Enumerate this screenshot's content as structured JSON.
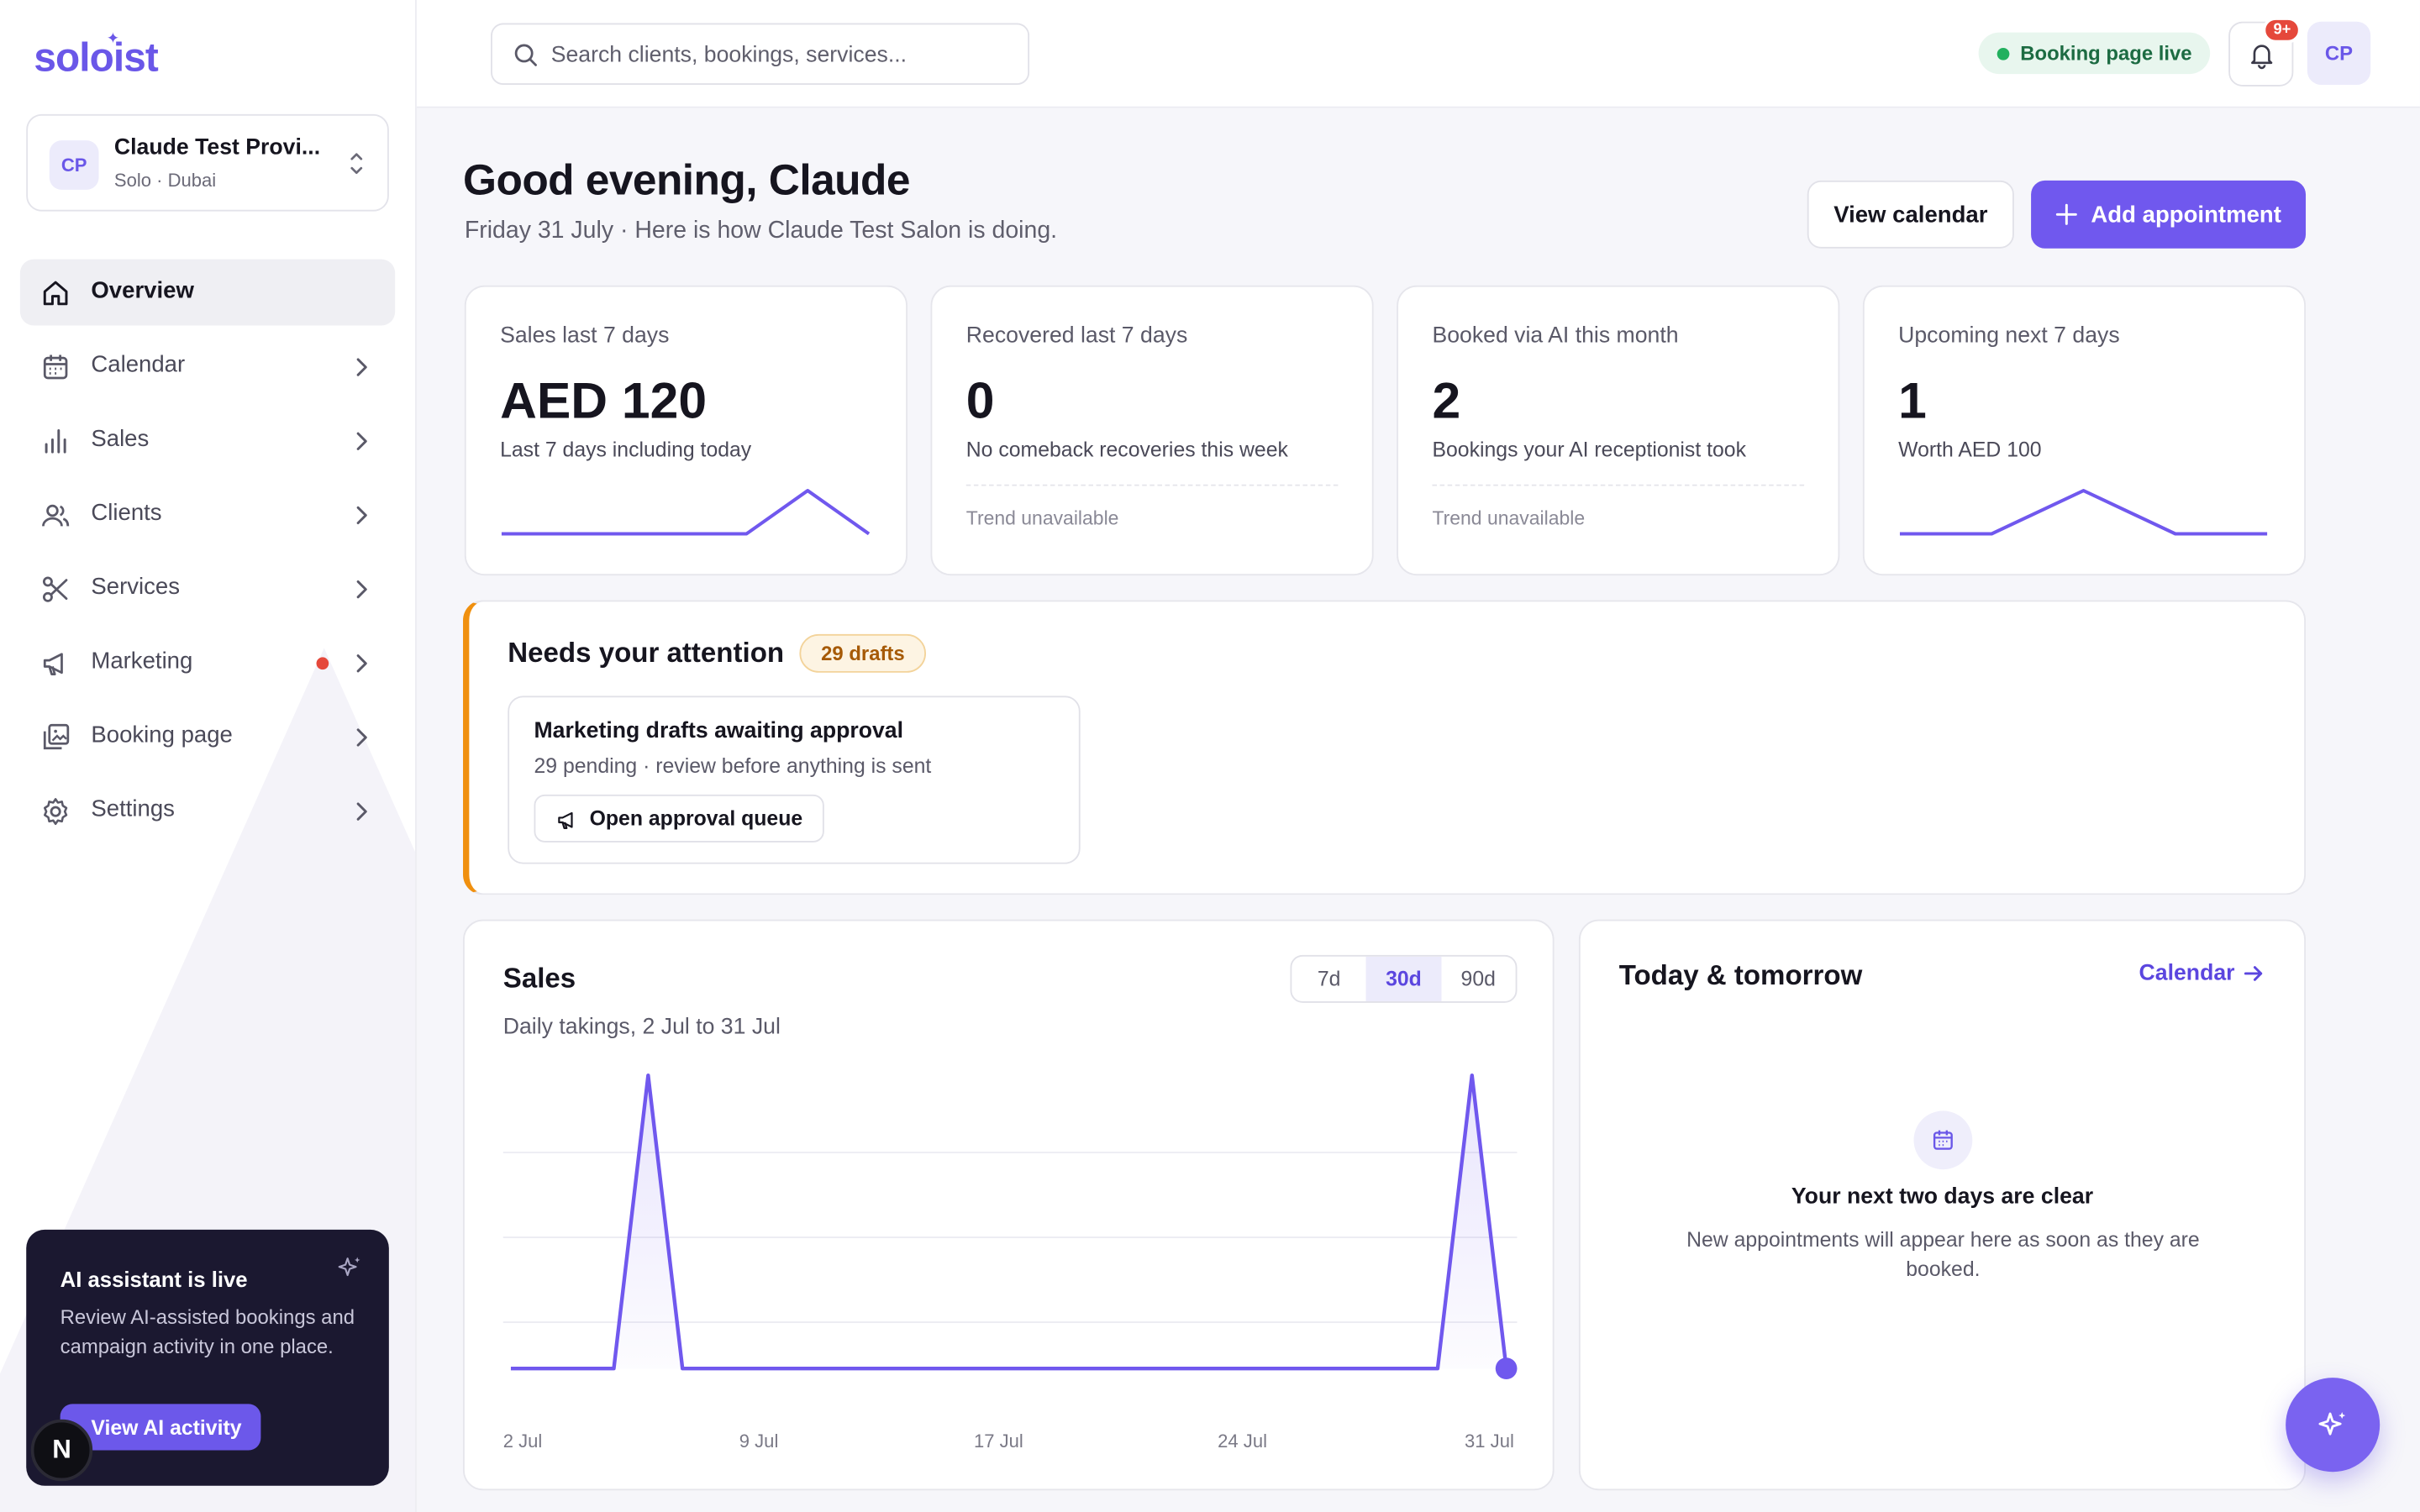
{
  "brand": {
    "name": "soloist"
  },
  "workspace": {
    "initials": "CP",
    "name": "Claude Test Provi...",
    "sub": "Solo · Dubai"
  },
  "nav": {
    "items": [
      {
        "label": "Overview",
        "icon": "home-icon",
        "active": true
      },
      {
        "label": "Calendar",
        "icon": "calendar-icon"
      },
      {
        "label": "Sales",
        "icon": "bar-chart-icon"
      },
      {
        "label": "Clients",
        "icon": "users-icon"
      },
      {
        "label": "Services",
        "icon": "scissors-icon"
      },
      {
        "label": "Marketing",
        "icon": "megaphone-icon",
        "notification_dot": true
      },
      {
        "label": "Booking page",
        "icon": "gallery-icon"
      },
      {
        "label": "Settings",
        "icon": "gear-icon"
      }
    ]
  },
  "ai_card": {
    "title": "AI assistant is live",
    "description": "Review AI-assisted bookings and campaign activity in one place.",
    "button": "View AI activity"
  },
  "dev_badge": {
    "letter": "N"
  },
  "topbar": {
    "search_placeholder": "Search clients, bookings, services...",
    "status": "Booking page live",
    "notifications_badge": "9+",
    "avatar_initials": "CP"
  },
  "header": {
    "greeting": "Good evening, Claude",
    "subtitle": "Friday 31 July · Here is how Claude Test Salon is doing.",
    "view_calendar": "View calendar",
    "add_appointment": "Add appointment"
  },
  "stats": [
    {
      "label": "Sales last 7 days",
      "value": "AED 120",
      "sub": "Last 7 days including today",
      "trend": [
        0,
        0,
        0,
        0,
        0,
        1,
        0
      ]
    },
    {
      "label": "Recovered last 7 days",
      "value": "0",
      "sub": "No comeback recoveries this week",
      "trend_text": "Trend unavailable"
    },
    {
      "label": "Booked via AI this month",
      "value": "2",
      "sub": "Bookings your AI receptionist took",
      "trend_text": "Trend unavailable"
    },
    {
      "label": "Upcoming next 7 days",
      "value": "1",
      "sub": "Worth AED 100",
      "trend": [
        0,
        0,
        1,
        0,
        0
      ]
    }
  ],
  "attention": {
    "title": "Needs your attention",
    "badge": "29 drafts",
    "card": {
      "title": "Marketing drafts awaiting approval",
      "sub": "29 pending · review before anything is sent",
      "button": "Open approval queue"
    }
  },
  "sales": {
    "title": "Sales",
    "subtitle": "Daily takings, 2 Jul to 31 Jul",
    "ranges": [
      "7d",
      "30d",
      "90d"
    ],
    "selected_range": "30d"
  },
  "chart_data": {
    "type": "area",
    "x": [
      "2 Jul",
      "3 Jul",
      "4 Jul",
      "5 Jul",
      "6 Jul",
      "7 Jul",
      "8 Jul",
      "9 Jul",
      "10 Jul",
      "11 Jul",
      "12 Jul",
      "13 Jul",
      "14 Jul",
      "15 Jul",
      "16 Jul",
      "17 Jul",
      "18 Jul",
      "19 Jul",
      "20 Jul",
      "21 Jul",
      "22 Jul",
      "23 Jul",
      "24 Jul",
      "25 Jul",
      "26 Jul",
      "27 Jul",
      "28 Jul",
      "29 Jul",
      "30 Jul",
      "31 Jul"
    ],
    "values": [
      0,
      0,
      0,
      0,
      1,
      0,
      0,
      0,
      0,
      0,
      0,
      0,
      0,
      0,
      0,
      0,
      0,
      0,
      0,
      0,
      0,
      0,
      0,
      0,
      0,
      0,
      0,
      0,
      1,
      0
    ],
    "x_tick_labels": [
      "2 Jul",
      "9 Jul",
      "17 Jul",
      "24 Jul",
      "31 Jul"
    ],
    "grid": true,
    "color": "#7058ee"
  },
  "today": {
    "title": "Today & tomorrow",
    "link": "Calendar",
    "empty_title": "Your next two days are clear",
    "empty_desc": "New appointments will appear here as soon as they are booked."
  },
  "colors": {
    "accent": "#7058ee",
    "warning": "#f0900f",
    "success": "#22b05e",
    "danger": "#e5483b"
  }
}
